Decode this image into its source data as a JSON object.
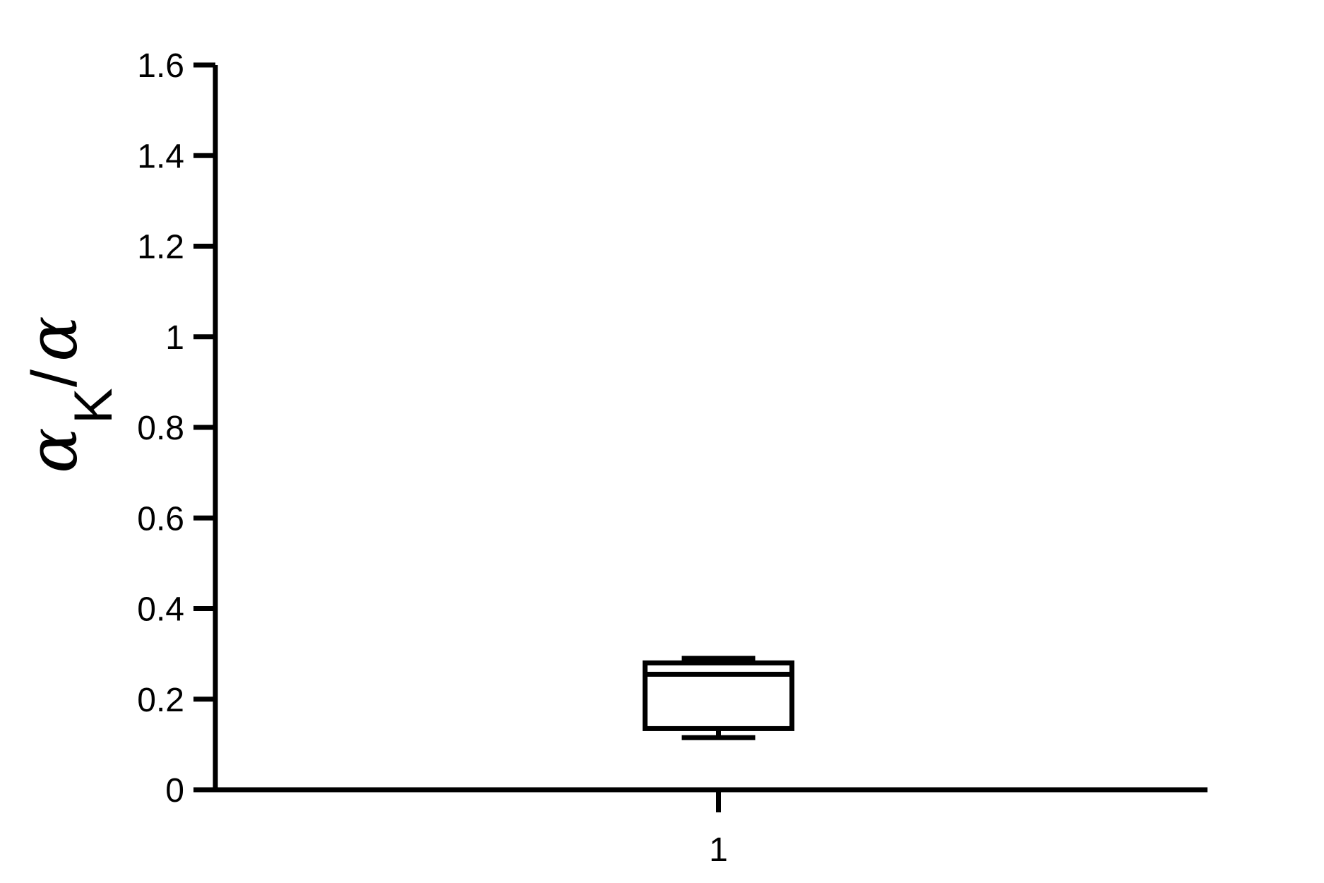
{
  "chart_data": {
    "type": "box",
    "title": "",
    "xlabel": "",
    "ylabel": {
      "symbol": "α",
      "subscript": "K",
      "separator": "/",
      "denominator": "α"
    },
    "ylim": [
      0,
      1.6
    ],
    "yticks": [
      {
        "value": 0,
        "label": "0"
      },
      {
        "value": 0.2,
        "label": "0.2"
      },
      {
        "value": 0.4,
        "label": "0.4"
      },
      {
        "value": 0.6,
        "label": "0.6"
      },
      {
        "value": 0.8,
        "label": "0.8"
      },
      {
        "value": 1.0,
        "label": "1"
      },
      {
        "value": 1.2,
        "label": "1.2"
      },
      {
        "value": 1.4,
        "label": "1.4"
      },
      {
        "value": 1.6,
        "label": "1.6"
      }
    ],
    "categories": [
      "1"
    ],
    "boxes": [
      {
        "category": "1",
        "min": 0.115,
        "q1": 0.135,
        "median": 0.255,
        "q3": 0.28,
        "max": 0.29
      }
    ],
    "grid": false,
    "colors": {
      "stroke": "#000000",
      "background": "#ffffff"
    }
  }
}
